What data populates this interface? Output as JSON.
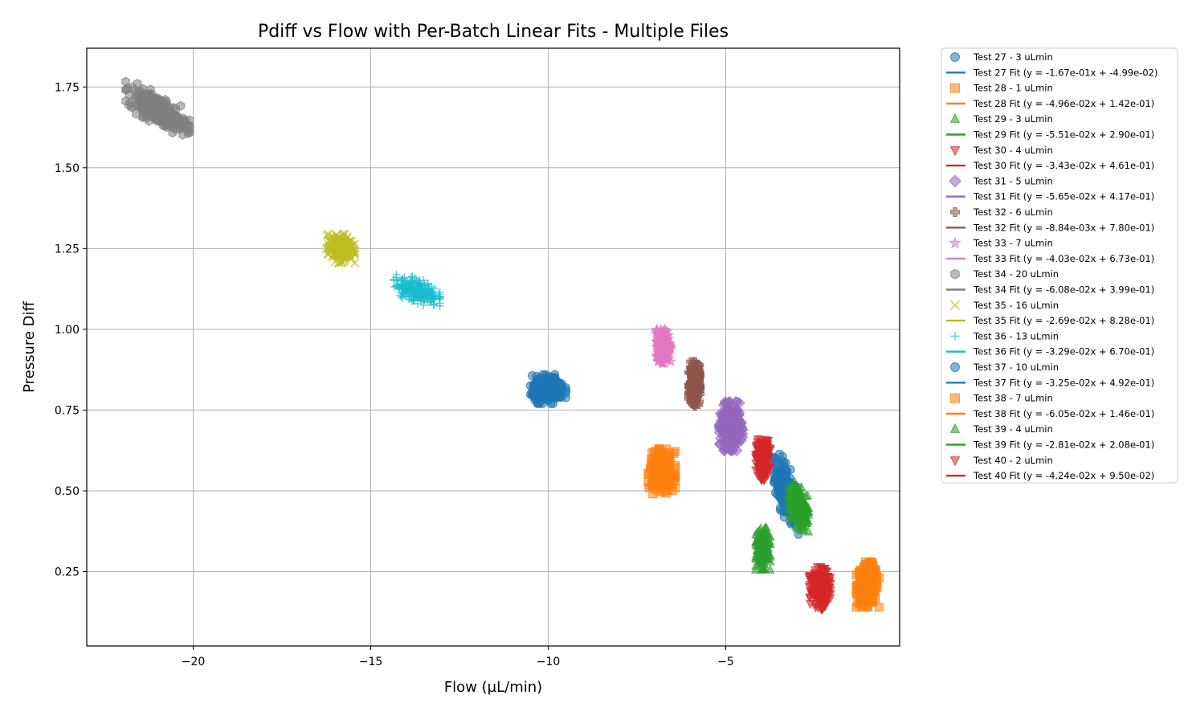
{
  "chart_data": {
    "type": "scatter",
    "title": "Pdiff vs Flow with Per-Batch Linear Fits - Multiple Files",
    "xlabel": "Flow (µL/min)",
    "ylabel": "Pressure Diff",
    "xlim": [
      -23,
      -0.1
    ],
    "ylim": [
      0.02,
      1.87
    ],
    "xticks": [
      -20,
      -15,
      -10,
      -5
    ],
    "xtick_labels": [
      "−20",
      "−15",
      "−10",
      "−5"
    ],
    "yticks": [
      0.25,
      0.5,
      0.75,
      1.0,
      1.25,
      1.5,
      1.75
    ],
    "ytick_labels": [
      "0.25",
      "0.50",
      "0.75",
      "1.00",
      "1.25",
      "1.50",
      "1.75"
    ],
    "grid": true,
    "legend_position": "outside-right",
    "series": [
      {
        "name": "Test 27 - 3 uLmin",
        "fit_label": "Test 27 Fit (y = -1.67e-01x + -4.99e-02)",
        "color": "#1f77b4",
        "marker": "circle",
        "x_center": -3.3,
        "y_center": 0.5,
        "x_spread": 0.35,
        "y_spread": 0.09,
        "tilt": -0.17
      },
      {
        "name": "Test 28 - 1 uLmin",
        "fit_label": "Test 28 Fit (y = -4.96e-02x + 1.42e-01)",
        "color": "#ff7f0e",
        "marker": "square",
        "x_center": -1.0,
        "y_center": 0.21,
        "x_spread": 0.32,
        "y_spread": 0.07,
        "tilt": 0
      },
      {
        "name": "Test 29 - 3 uLmin",
        "fit_label": "Test 29 Fit (y = -5.51e-02x + 2.90e-01)",
        "color": "#2ca02c",
        "marker": "triangle-up",
        "x_center": -2.95,
        "y_center": 0.45,
        "x_spread": 0.28,
        "y_spread": 0.07,
        "tilt": -0.1
      },
      {
        "name": "Test 30 - 4 uLmin",
        "fit_label": "Test 30 Fit (y = -3.43e-02x + 4.61e-01)",
        "color": "#d62728",
        "marker": "triangle-down",
        "x_center": -3.95,
        "y_center": 0.6,
        "x_spread": 0.2,
        "y_spread": 0.065,
        "tilt": 0
      },
      {
        "name": "Test 31 - 5 uLmin",
        "fit_label": "Test 31 Fit (y = -5.65e-02x + 4.17e-01)",
        "color": "#9467bd",
        "marker": "diamond",
        "x_center": -4.85,
        "y_center": 0.7,
        "x_spread": 0.32,
        "y_spread": 0.075,
        "tilt": 0
      },
      {
        "name": "Test 32 - 6 uLmin",
        "fit_label": "Test 32 Fit (y = -8.84e-03x + 7.80e-01)",
        "color": "#8c564b",
        "marker": "plus",
        "x_center": -5.88,
        "y_center": 0.83,
        "x_spread": 0.16,
        "y_spread": 0.07,
        "tilt": 0
      },
      {
        "name": "Test 33 - 7 uLmin",
        "fit_label": "Test 33 Fit (y = -4.03e-02x + 6.73e-01)",
        "color": "#e377c2",
        "marker": "star",
        "x_center": -6.75,
        "y_center": 0.95,
        "x_spread": 0.2,
        "y_spread": 0.055,
        "tilt": 0
      },
      {
        "name": "Test 34 - 20 uLmin",
        "fit_label": "Test 34 Fit (y = -6.08e-02x + 3.99e-01)",
        "color": "#7f7f7f",
        "marker": "hexagon",
        "x_center": -21.0,
        "y_center": 1.68,
        "x_spread": 0.9,
        "y_spread": 0.05,
        "tilt": -0.06
      },
      {
        "name": "Test 35 - 16 uLmin",
        "fit_label": "Test 35 Fit (y = -2.69e-02x + 8.28e-01)",
        "color": "#bcbd22",
        "marker": "x",
        "x_center": -15.85,
        "y_center": 1.25,
        "x_spread": 0.4,
        "y_spread": 0.045,
        "tilt": 0
      },
      {
        "name": "Test 36 - 13 uLmin",
        "fit_label": "Test 36 Fit (y = -3.29e-02x + 6.70e-01)",
        "color": "#17becf",
        "marker": "plus-thin",
        "x_center": -13.7,
        "y_center": 1.12,
        "x_spread": 0.65,
        "y_spread": 0.04,
        "tilt": -0.03
      },
      {
        "name": "Test 37 - 10 uLmin",
        "fit_label": "Test 37 Fit (y = -3.25e-02x + 4.92e-01)",
        "color": "#1f77b4",
        "marker": "circle",
        "x_center": -10.0,
        "y_center": 0.815,
        "x_spread": 0.5,
        "y_spread": 0.045,
        "tilt": 0
      },
      {
        "name": "Test 38 - 7 uLmin",
        "fit_label": "Test 38 Fit (y = -6.05e-02x + 1.46e-01)",
        "color": "#ff7f0e",
        "marker": "square",
        "x_center": -6.8,
        "y_center": 0.56,
        "x_spread": 0.38,
        "y_spread": 0.07,
        "tilt": 0
      },
      {
        "name": "Test 39 - 4 uLmin",
        "fit_label": "Test 39 Fit (y = -2.81e-02x + 2.08e-01)",
        "color": "#2ca02c",
        "marker": "triangle-up",
        "x_center": -3.95,
        "y_center": 0.32,
        "x_spread": 0.2,
        "y_spread": 0.065,
        "tilt": 0
      },
      {
        "name": "Test 40 - 2 uLmin",
        "fit_label": "Test 40 Fit (y = -4.24e-02x + 9.50e-02)",
        "color": "#d62728",
        "marker": "triangle-down",
        "x_center": -2.35,
        "y_center": 0.2,
        "x_spread": 0.3,
        "y_spread": 0.065,
        "tilt": 0
      }
    ]
  }
}
